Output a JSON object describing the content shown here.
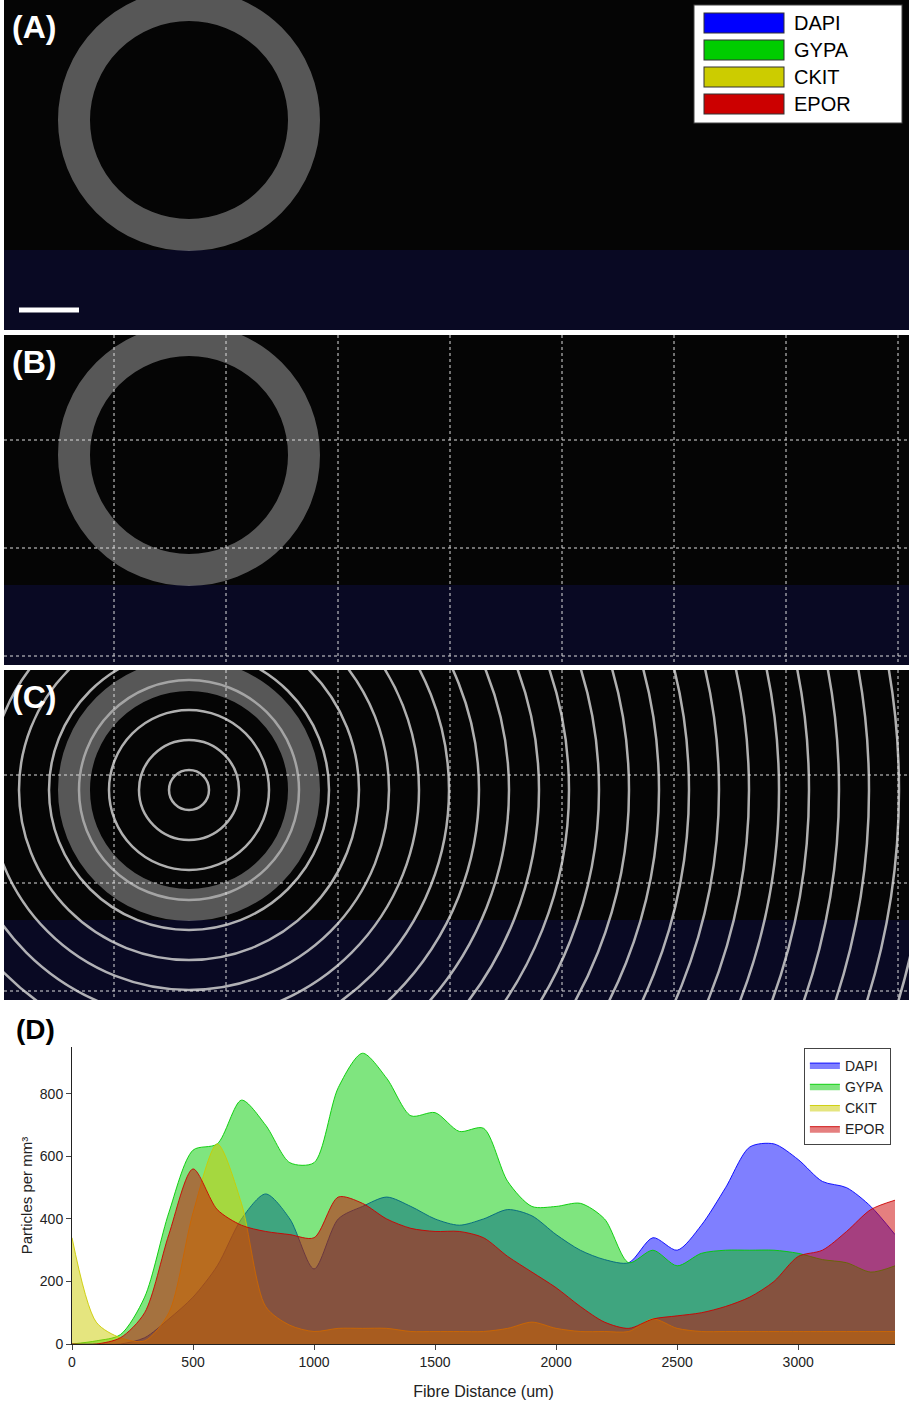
{
  "image_panels": [
    {
      "label": "(A)",
      "legend": [
        {
          "name": "DAPI",
          "color": "#0000ff"
        },
        {
          "name": "GYPA",
          "color": "#00cc00"
        },
        {
          "name": "CKIT",
          "color": "#cccc00"
        },
        {
          "name": "EPOR",
          "color": "#cc0000"
        }
      ]
    },
    {
      "label": "(B)"
    },
    {
      "label": "(C)"
    }
  ],
  "chart_data": {
    "type": "area",
    "label": "(D)",
    "x_label": "Fibre Distance (um)",
    "y_label": "Particles per mm³",
    "x": [
      0,
      100,
      200,
      300,
      400,
      500,
      600,
      700,
      800,
      900,
      1000,
      1100,
      1200,
      1300,
      1400,
      1500,
      1600,
      1700,
      1800,
      1900,
      2000,
      2100,
      2200,
      2300,
      2400,
      2500,
      2600,
      2700,
      2800,
      2900,
      3000,
      3100,
      3200,
      3300,
      3400
    ],
    "series": [
      {
        "name": "DAPI",
        "color": "#0000ff",
        "values": [
          0,
          0,
          0,
          20,
          80,
          150,
          250,
          400,
          480,
          400,
          240,
          400,
          440,
          470,
          440,
          400,
          380,
          400,
          430,
          410,
          350,
          300,
          270,
          260,
          340,
          300,
          380,
          500,
          630,
          640,
          590,
          520,
          500,
          440,
          350
        ]
      },
      {
        "name": "GYPA",
        "color": "#00cc00",
        "values": [
          0,
          10,
          30,
          150,
          420,
          620,
          640,
          780,
          700,
          580,
          580,
          820,
          930,
          850,
          730,
          740,
          680,
          690,
          520,
          440,
          440,
          450,
          400,
          260,
          300,
          250,
          290,
          300,
          300,
          300,
          290,
          270,
          260,
          230,
          250
        ]
      },
      {
        "name": "CKIT",
        "color": "#cccc00",
        "values": [
          340,
          70,
          20,
          10,
          100,
          420,
          640,
          450,
          120,
          60,
          40,
          50,
          50,
          50,
          40,
          40,
          40,
          40,
          50,
          70,
          50,
          40,
          40,
          40,
          80,
          50,
          40,
          40,
          40,
          40,
          40,
          40,
          40,
          40,
          40
        ]
      },
      {
        "name": "EPOR",
        "color": "#cc0000",
        "values": [
          0,
          0,
          20,
          100,
          350,
          560,
          430,
          380,
          360,
          350,
          340,
          470,
          450,
          400,
          370,
          360,
          360,
          340,
          280,
          230,
          180,
          120,
          70,
          50,
          80,
          90,
          100,
          120,
          150,
          200,
          280,
          300,
          360,
          430,
          460
        ]
      }
    ],
    "xlim": [
      0,
      3400
    ],
    "xticks": [
      0,
      500,
      1000,
      1500,
      2000,
      2500,
      3000
    ],
    "ylim": [
      0,
      950
    ],
    "yticks": [
      0,
      200,
      400,
      600,
      800
    ],
    "legend": "top-right",
    "grid": false
  }
}
